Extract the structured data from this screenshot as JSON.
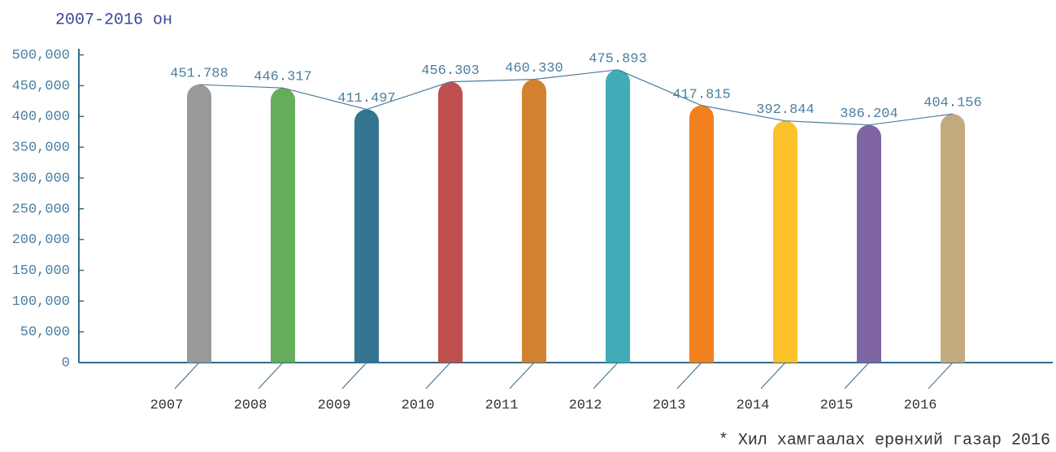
{
  "chart_data": {
    "type": "bar",
    "title": "2007-2016 он",
    "note": "* Хил хамгаалах ерөнхий газар 2016",
    "categories": [
      "2007",
      "2008",
      "2009",
      "2010",
      "2011",
      "2012",
      "2013",
      "2014",
      "2015",
      "2016"
    ],
    "values": [
      451788,
      446317,
      411497,
      456303,
      460330,
      475893,
      417815,
      392844,
      386204,
      404156
    ],
    "value_labels": [
      "451.788",
      "446.317",
      "411.497",
      "456.303",
      "460.330",
      "475.893",
      "417.815",
      "392.844",
      "386.204",
      "404.156"
    ],
    "colors": [
      "#999999",
      "#65ad5a",
      "#347591",
      "#c0504d",
      "#d2822f",
      "#42abb8",
      "#f3801f",
      "#fdc12a",
      "#7f64a3",
      "#c2aa7f"
    ],
    "ylim": [
      0,
      510000
    ],
    "yticks": [
      0,
      {
        "value": 50000,
        "label": "50,000"
      },
      {
        "value": 100000,
        "label": "100,000"
      },
      {
        "value": 150000,
        "label": "150,000"
      },
      {
        "value": 200000,
        "label": "200,000"
      },
      {
        "value": 250000,
        "label": "250,000"
      },
      {
        "value": 300000,
        "label": "300,000"
      },
      {
        "value": 350000,
        "label": "350,000"
      },
      {
        "value": 400000,
        "label": "400,000"
      },
      {
        "value": 450000,
        "label": "450,000"
      },
      {
        "value": 500000,
        "label": "500,000"
      }
    ],
    "grid": false
  }
}
